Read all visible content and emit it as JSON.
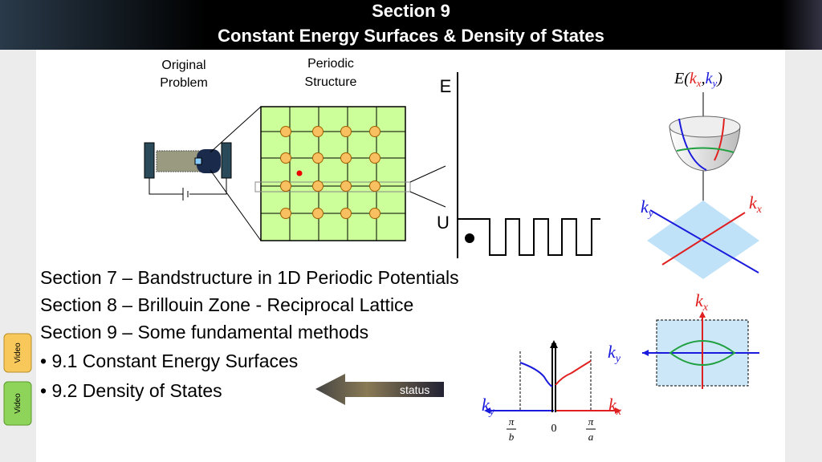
{
  "header": {
    "section": "Section 9",
    "title": "Constant Energy Surfaces & Density of States"
  },
  "figure": {
    "original_label": [
      "Original",
      "Problem"
    ],
    "periodic_label": [
      "Periodic",
      "Structure"
    ],
    "energy_axis": "E",
    "potential_label": "U"
  },
  "symbols": {
    "E": "E",
    "open": "(",
    "comma": ",",
    "close": ")",
    "k": "k",
    "x": "x",
    "y": "y"
  },
  "band_plot": {
    "pi": "π",
    "b": "b",
    "a": "a",
    "zero": "0"
  },
  "bullets": [
    "Section 7 – Bandstructure in 1D Periodic Potentials",
    "Section 8 – Brillouin Zone - Reciprocal Lattice",
    "Section 9 – Some fundamental methods",
    "• 9.1 Constant Energy Surfaces",
    "• 9.2 Density of States"
  ],
  "buttons": [
    "Video",
    "Video"
  ],
  "status": "status"
}
